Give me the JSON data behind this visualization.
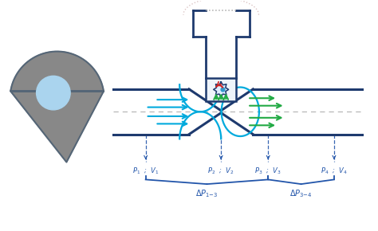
{
  "bg_color": "#ffffff",
  "dark_blue": "#1e3a6e",
  "cyan": "#00aadd",
  "green": "#22aa44",
  "red": "#cc2222",
  "gray_body": "#888888",
  "gray_outline": "#666677",
  "light_blue_circle": "#aad4ee",
  "dashed_gray": "#aaaaaa",
  "label_blue": "#2255aa",
  "fig_width": 4.74,
  "fig_height": 2.9,
  "dpi": 100
}
